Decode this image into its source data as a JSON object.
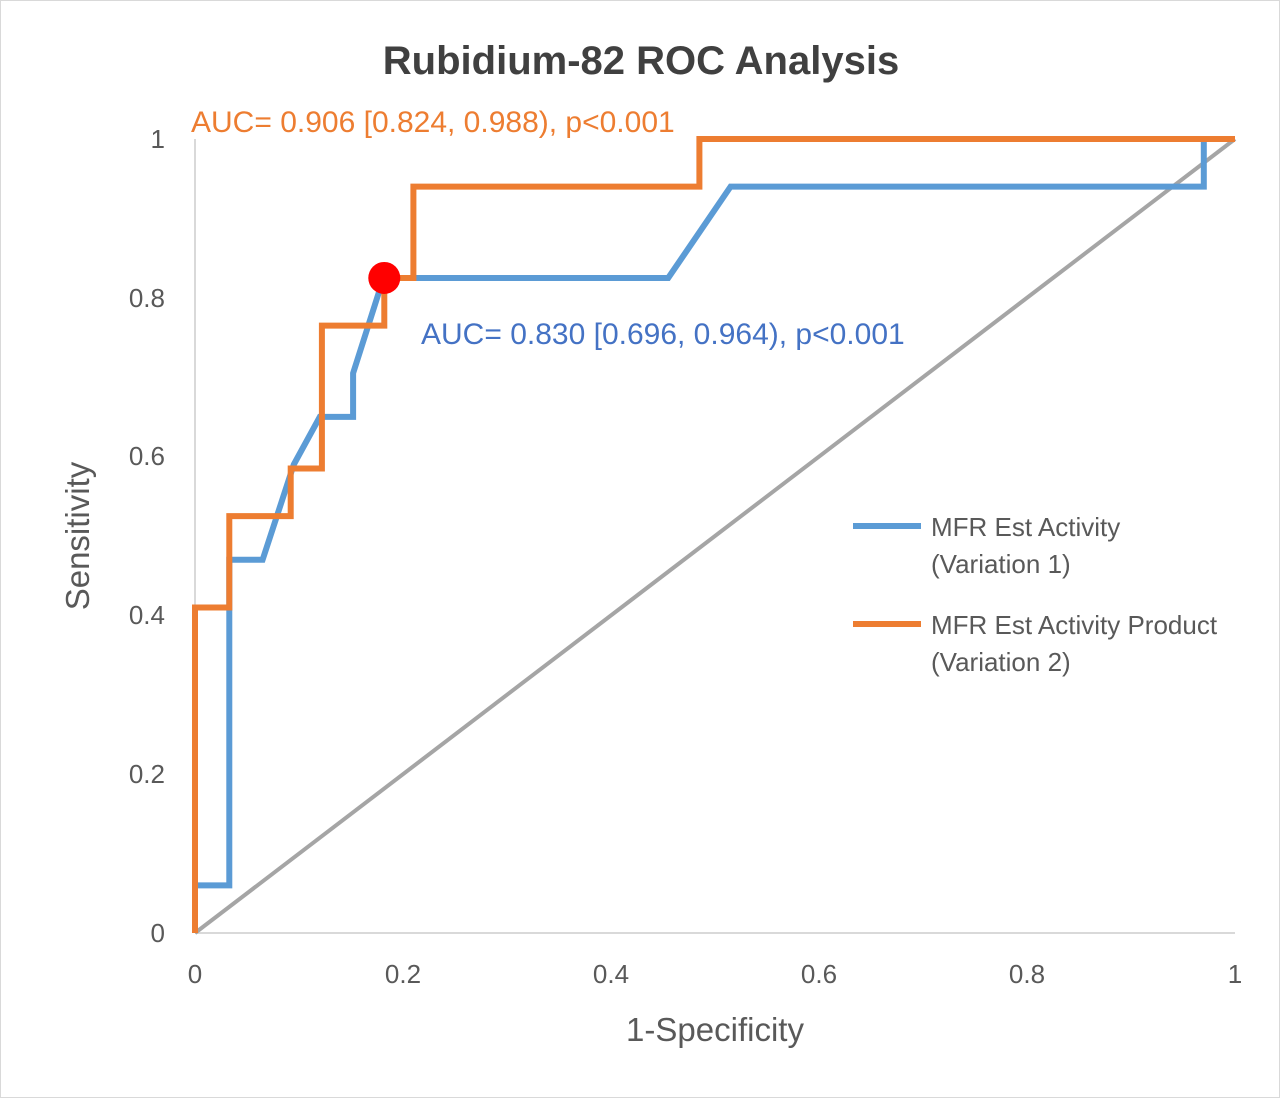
{
  "chart_data": {
    "type": "line",
    "title": "Rubidium-82 ROC Analysis",
    "xlabel": "1-Specificity",
    "ylabel": "Sensitivity",
    "xlim": [
      0,
      1
    ],
    "ylim": [
      0,
      1
    ],
    "x_ticks": [
      "0",
      "0.2",
      "0.4",
      "0.6",
      "0.8",
      "1"
    ],
    "y_ticks": [
      "0",
      "0.2",
      "0.4",
      "0.6",
      "0.8",
      "1"
    ],
    "grid": false,
    "legend_position": "right",
    "series": [
      {
        "name": "MFR Est Activity (Variation 1)",
        "legend_lines": [
          "MFR Est Activity",
          "(Variation 1)"
        ],
        "color": "#5b9bd5",
        "x": [
          0,
          0,
          0.033,
          0.033,
          0.065,
          0.095,
          0.12,
          0.152,
          0.152,
          0.18,
          0.182,
          0.21,
          0.455,
          0.515,
          0.97,
          0.97,
          1
        ],
        "y": [
          0,
          0.06,
          0.06,
          0.47,
          0.47,
          0.59,
          0.65,
          0.65,
          0.705,
          0.82,
          0.825,
          0.825,
          0.825,
          0.94,
          0.94,
          1,
          1
        ]
      },
      {
        "name": "MFR Est Activity Product (Variation 2)",
        "legend_lines": [
          "MFR Est Activity Product",
          "(Variation 2)"
        ],
        "color": "#ed7d31",
        "x": [
          0,
          0,
          0.033,
          0.033,
          0.092,
          0.092,
          0.122,
          0.122,
          0.182,
          0.182,
          0.21,
          0.21,
          0.485,
          0.485,
          1
        ],
        "y": [
          0,
          0.41,
          0.41,
          0.525,
          0.525,
          0.585,
          0.585,
          0.765,
          0.765,
          0.825,
          0.825,
          0.94,
          0.94,
          1,
          1
        ]
      },
      {
        "color": "#a5a5a5",
        "x": [
          0,
          1
        ],
        "y": [
          0,
          1
        ]
      }
    ],
    "optimal_point": {
      "x": 0.182,
      "y": 0.825,
      "color": "#ff0000"
    },
    "annotations": [
      {
        "text": "AUC= 0.906  [0.824, 0.988), p<0.001",
        "color": "#ed7d31"
      },
      {
        "text": "AUC= 0.830  [0.696, 0.964), p<0.001",
        "color": "#4472c4"
      }
    ]
  }
}
